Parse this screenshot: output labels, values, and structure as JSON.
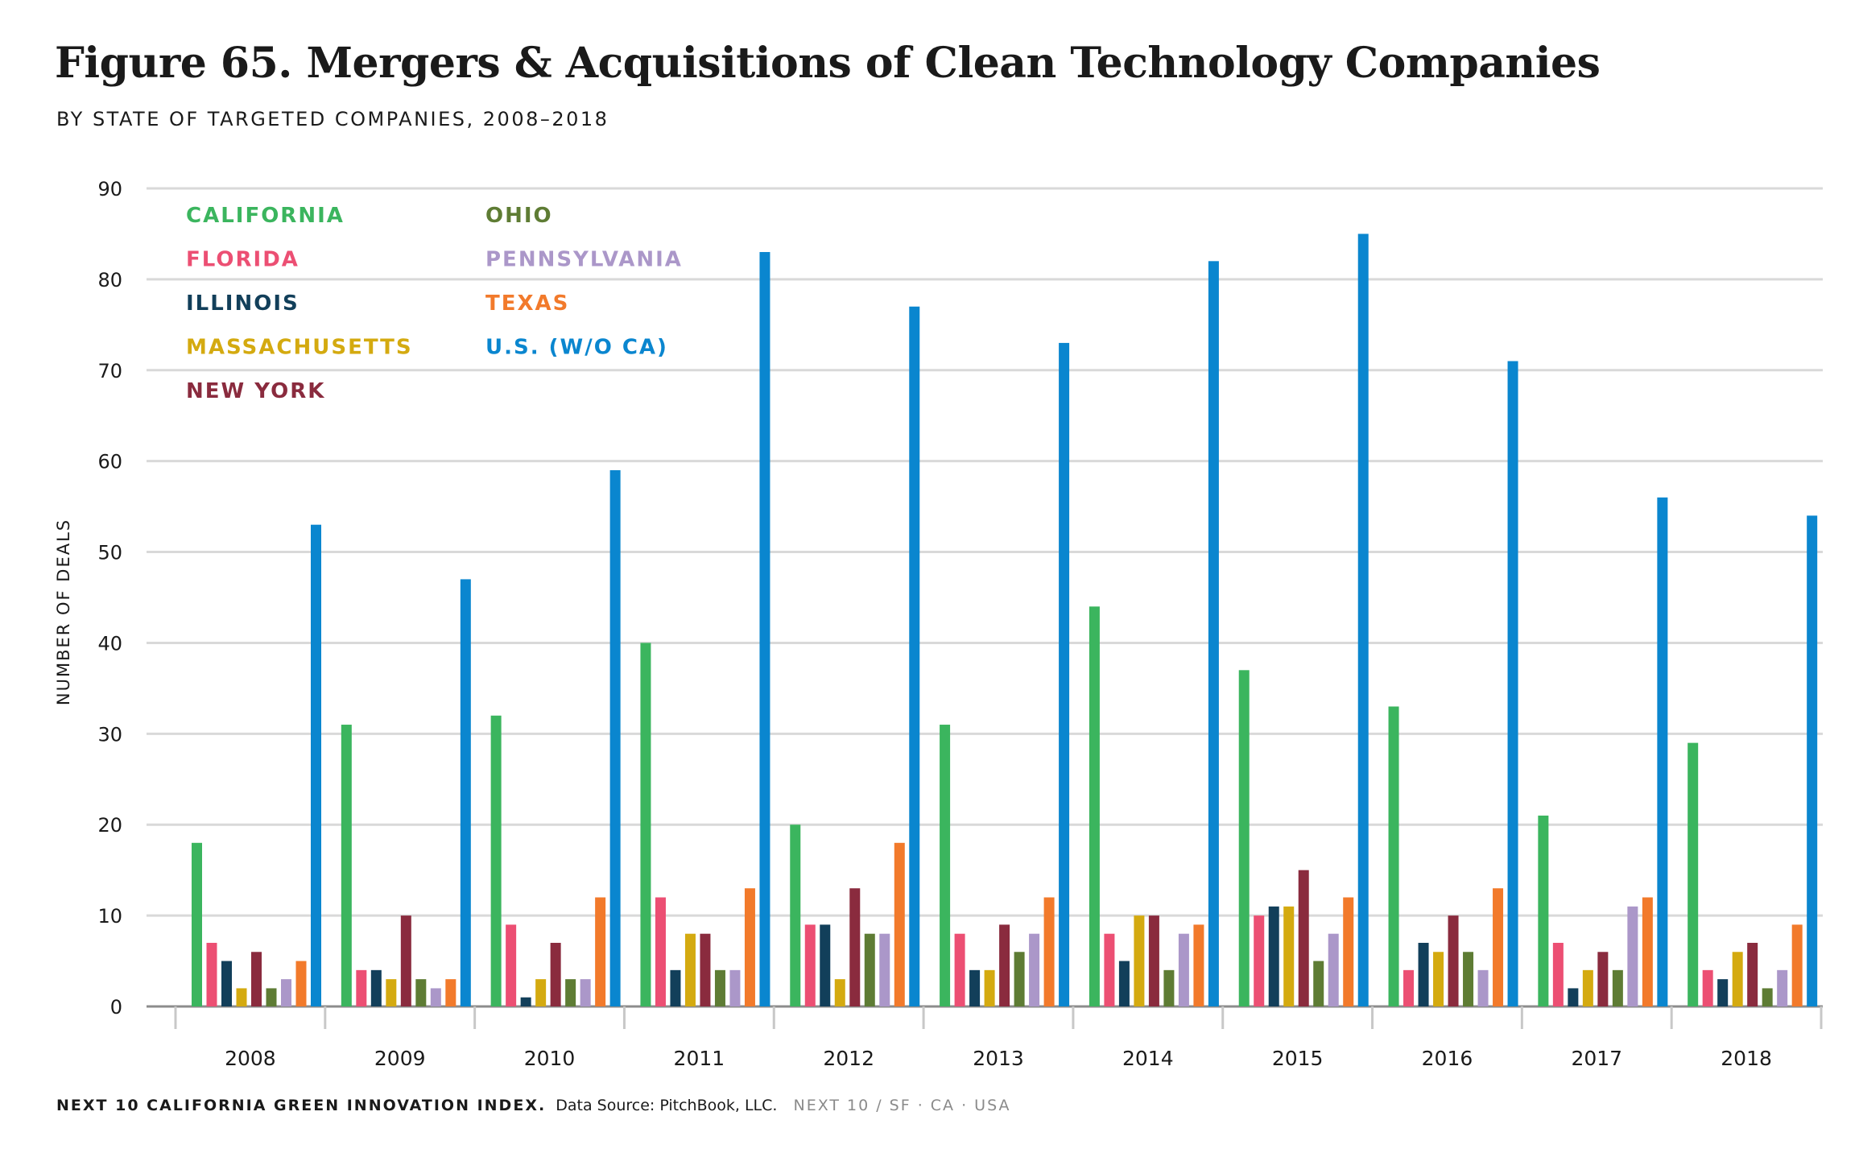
{
  "title": "Figure 65. Mergers & Acquisitions of Clean Technology Companies",
  "subtitle": "BY STATE OF TARGETED COMPANIES, 2008–2018",
  "footer": {
    "brand": "NEXT 10 CALIFORNIA GREEN INNOVATION INDEX.",
    "source": "Data Source: PitchBook, LLC.",
    "org": "NEXT 10  /  SF · CA · USA"
  },
  "chart_data": {
    "type": "bar",
    "ylabel": "NUMBER OF DEALS",
    "ylim": [
      0,
      90
    ],
    "yticks": [
      0,
      10,
      20,
      30,
      40,
      50,
      60,
      70,
      80,
      90
    ],
    "grid": true,
    "legend_position": "top-left",
    "categories": [
      "2008",
      "2009",
      "2010",
      "2011",
      "2012",
      "2013",
      "2014",
      "2015",
      "2016",
      "2017",
      "2018"
    ],
    "series": [
      {
        "name": "CALIFORNIA",
        "color": "#3bb55e",
        "values": [
          18,
          31,
          32,
          40,
          20,
          31,
          44,
          37,
          33,
          21,
          29
        ]
      },
      {
        "name": "FLORIDA",
        "color": "#ec4f73",
        "values": [
          7,
          4,
          9,
          12,
          9,
          8,
          8,
          10,
          4,
          7,
          4
        ]
      },
      {
        "name": "ILLINOIS",
        "color": "#123f5a",
        "values": [
          5,
          4,
          1,
          4,
          9,
          4,
          5,
          11,
          7,
          2,
          3
        ]
      },
      {
        "name": "MASSACHUSETTS",
        "color": "#d4aa10",
        "values": [
          2,
          3,
          3,
          8,
          3,
          4,
          10,
          11,
          6,
          4,
          6
        ]
      },
      {
        "name": "NEW YORK",
        "color": "#8a2b3e",
        "values": [
          6,
          10,
          7,
          8,
          13,
          9,
          10,
          15,
          10,
          6,
          7
        ]
      },
      {
        "name": "OHIO",
        "color": "#5e7c34",
        "values": [
          2,
          3,
          3,
          4,
          8,
          6,
          4,
          5,
          6,
          4,
          2
        ]
      },
      {
        "name": "PENNSYLVANIA",
        "color": "#ab97c9",
        "values": [
          3,
          2,
          3,
          4,
          8,
          8,
          8,
          8,
          4,
          11,
          4
        ]
      },
      {
        "name": "TEXAS",
        "color": "#f27a2b",
        "values": [
          5,
          3,
          12,
          13,
          18,
          12,
          9,
          12,
          13,
          12,
          9
        ]
      },
      {
        "name": "U.S. (W/O CA)",
        "color": "#0a86cf",
        "values": [
          53,
          47,
          59,
          83,
          77,
          73,
          82,
          85,
          71,
          56,
          54
        ]
      }
    ]
  }
}
